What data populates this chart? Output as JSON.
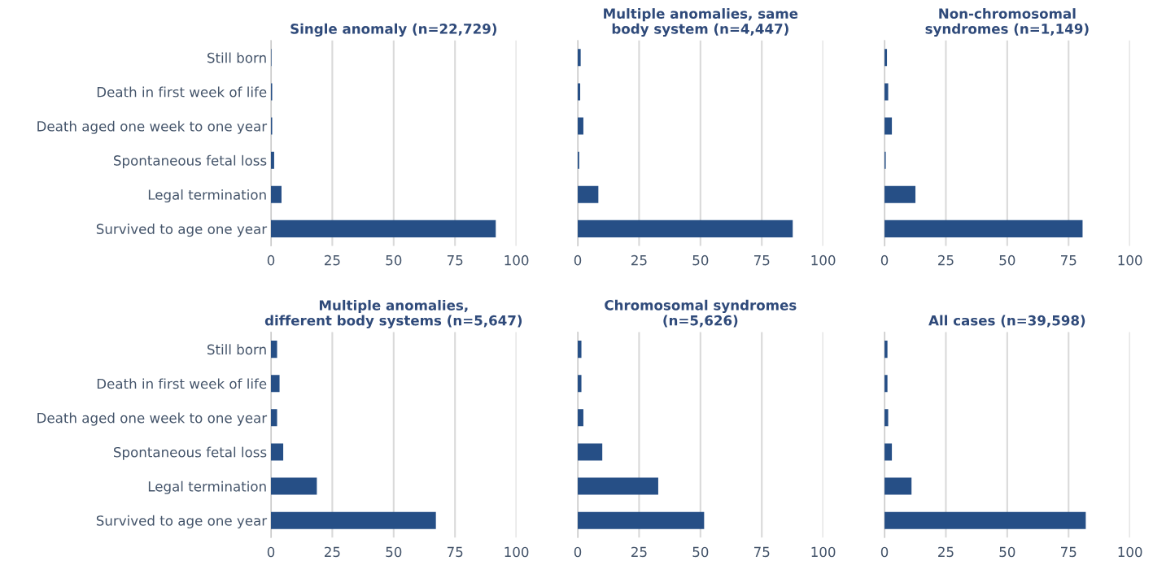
{
  "chart_data": [
    {
      "type": "bar",
      "orientation": "horizontal",
      "title": "Single anomaly (n=22,729)",
      "categories": [
        "Still born",
        "Death in first week of life",
        "Death aged one week to one year",
        "Spontaneous fetal loss",
        "Legal termination",
        "Survived to age one year"
      ],
      "values": [
        0.2,
        0.5,
        0.5,
        1.3,
        4.3,
        91.6
      ],
      "color": "#264f86",
      "xlim": [
        0,
        100
      ],
      "xticks": [
        0,
        25,
        50,
        75,
        100
      ],
      "grid": "x"
    },
    {
      "type": "bar",
      "orientation": "horizontal",
      "title": "Multiple anomalies, same\nbody system (n=4,447)",
      "categories": [
        null,
        null,
        null,
        null,
        null,
        null
      ],
      "values": [
        1.2,
        1.0,
        2.3,
        0.6,
        8.4,
        87.6
      ],
      "color": "#264f86",
      "xlim": [
        0,
        100
      ],
      "xticks": [
        0,
        25,
        50,
        75,
        100
      ],
      "grid": "x",
      "tick_labels": "x"
    },
    {
      "type": "bar",
      "orientation": "horizontal",
      "title": "Non-chromosomal\nsyndromes (n=1,149)",
      "categories": [
        null,
        null,
        null,
        null,
        null,
        null
      ],
      "values": [
        1.0,
        1.5,
        3.0,
        0.5,
        12.6,
        80.7
      ],
      "color": "#264f86",
      "xlim": [
        0,
        100
      ],
      "xticks": [
        0,
        25,
        50,
        75,
        100
      ],
      "grid": "x",
      "tick_labels": "x"
    },
    {
      "type": "bar",
      "orientation": "horizontal",
      "title": "Multiple anomalies,\ndifferent body systems (n=5,647)",
      "categories": [
        "Still born",
        "Death in first week of life",
        "Death aged one week to one year",
        "Spontaneous fetal loss",
        "Legal termination",
        "Survived to age one year"
      ],
      "values": [
        2.5,
        3.5,
        2.5,
        5.0,
        18.7,
        67.2
      ],
      "color": "#264f86",
      "xlim": [
        0,
        100
      ],
      "xticks": [
        0,
        25,
        50,
        75,
        100
      ],
      "grid": "x"
    },
    {
      "type": "bar",
      "orientation": "horizontal",
      "title": "Chromosomal syndromes\n(n=5,626)",
      "categories": [
        null,
        null,
        null,
        null,
        null,
        null
      ],
      "values": [
        1.5,
        1.5,
        2.3,
        10.0,
        32.8,
        51.5
      ],
      "color": "#264f86",
      "xlim": [
        0,
        100
      ],
      "xticks": [
        0,
        25,
        50,
        75,
        100
      ],
      "grid": "x",
      "tick_labels": "x"
    },
    {
      "type": "bar",
      "orientation": "horizontal",
      "title": "All cases (n=39,598)",
      "categories": [
        null,
        null,
        null,
        null,
        null,
        null
      ],
      "values": [
        1.2,
        1.2,
        1.5,
        3.0,
        11.0,
        82.0
      ],
      "color": "#264f86",
      "xlim": [
        0,
        100
      ],
      "xticks": [
        0,
        25,
        50,
        75,
        100
      ],
      "grid": "x",
      "tick_labels": "x"
    }
  ]
}
